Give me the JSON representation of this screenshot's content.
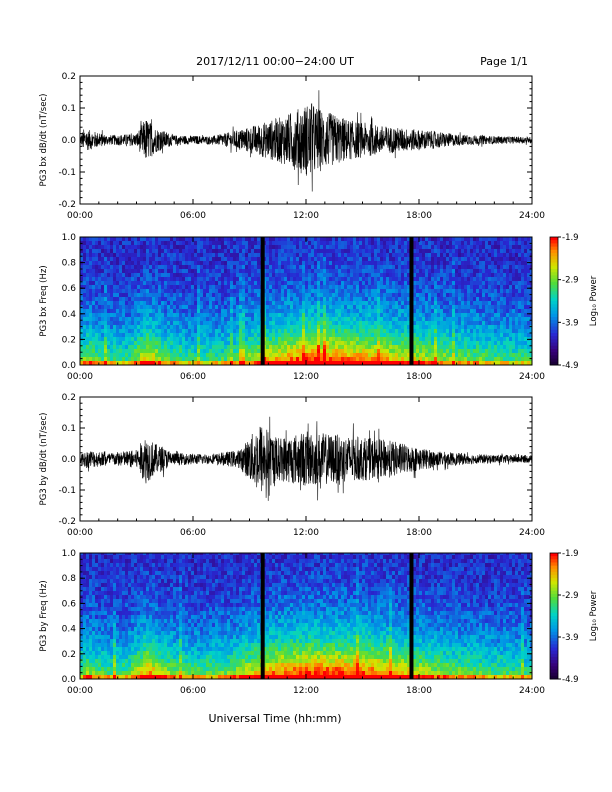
{
  "header": {
    "title": "2017/12/11   00:00−24:00 UT",
    "page": "Page 1/1"
  },
  "footer": {
    "xlabel": "Universal Time (hh:mm)"
  },
  "colorbar": {
    "label": "Log₁₀ Power",
    "ticks": [
      "-1.9",
      "-2.9",
      "-3.9",
      "-4.9"
    ],
    "range": [
      -4.9,
      -1.9
    ]
  },
  "chart_data": [
    {
      "type": "line",
      "ylabel": "PG3 bx dB/dt (nT/sec)",
      "xlim_hours": [
        0,
        24
      ],
      "ylim": [
        -0.2,
        0.2
      ],
      "x_ticks": [
        "00:00",
        "06:00",
        "12:00",
        "18:00",
        "24:00"
      ],
      "y_ticks": [
        "0.2",
        "0.1",
        "0.0",
        "-0.1",
        "-0.2"
      ],
      "envelope": [
        {
          "t": 0,
          "a": 0.012
        },
        {
          "t": 0.2,
          "a": 0.035
        },
        {
          "t": 0.6,
          "a": 0.03
        },
        {
          "t": 1.5,
          "a": 0.015
        },
        {
          "t": 3.0,
          "a": 0.02
        },
        {
          "t": 3.5,
          "a": 0.07
        },
        {
          "t": 4.0,
          "a": 0.04
        },
        {
          "t": 5.0,
          "a": 0.015
        },
        {
          "t": 7.0,
          "a": 0.012
        },
        {
          "t": 8.0,
          "a": 0.025
        },
        {
          "t": 9.5,
          "a": 0.05
        },
        {
          "t": 11.0,
          "a": 0.08
        },
        {
          "t": 12.2,
          "a": 0.12
        },
        {
          "t": 13.0,
          "a": 0.09
        },
        {
          "t": 14.5,
          "a": 0.06
        },
        {
          "t": 16.0,
          "a": 0.045
        },
        {
          "t": 17.5,
          "a": 0.035
        },
        {
          "t": 18.5,
          "a": 0.03
        },
        {
          "t": 20.0,
          "a": 0.018
        },
        {
          "t": 22.0,
          "a": 0.012
        },
        {
          "t": 24,
          "a": 0.01
        }
      ]
    },
    {
      "type": "heatmap",
      "ylabel": "PG3 bx Freq (Hz)",
      "xlim_hours": [
        0,
        24
      ],
      "ylim": [
        0.0,
        1.0
      ],
      "x_ticks": [
        "00:00",
        "06:00",
        "12:00",
        "18:00",
        "24:00"
      ],
      "y_ticks": [
        "1.0",
        "0.8",
        "0.6",
        "0.4",
        "0.2",
        "0.0"
      ],
      "data_gaps_hours": [
        9.7,
        17.6
      ],
      "intensity": [
        {
          "t": 0,
          "v": 0.45
        },
        {
          "t": 0.5,
          "v": 0.55
        },
        {
          "t": 1.0,
          "v": 0.45
        },
        {
          "t": 2.5,
          "v": 0.4
        },
        {
          "t": 3.6,
          "v": 0.7
        },
        {
          "t": 4.5,
          "v": 0.5
        },
        {
          "t": 6.0,
          "v": 0.4
        },
        {
          "t": 8.0,
          "v": 0.45
        },
        {
          "t": 9.5,
          "v": 0.6
        },
        {
          "t": 11.0,
          "v": 0.75
        },
        {
          "t": 12.5,
          "v": 0.85
        },
        {
          "t": 14.0,
          "v": 0.78
        },
        {
          "t": 16.0,
          "v": 0.7
        },
        {
          "t": 18.0,
          "v": 0.6
        },
        {
          "t": 20.0,
          "v": 0.5
        },
        {
          "t": 22.0,
          "v": 0.45
        },
        {
          "t": 24,
          "v": 0.4
        }
      ]
    },
    {
      "type": "line",
      "ylabel": "PG3 by dB/dt (nT/sec)",
      "xlim_hours": [
        0,
        24
      ],
      "ylim": [
        -0.2,
        0.2
      ],
      "x_ticks": [
        "00:00",
        "06:00",
        "12:00",
        "18:00",
        "24:00"
      ],
      "y_ticks": [
        "0.2",
        "0.1",
        "0.0",
        "-0.1",
        "-0.2"
      ],
      "envelope": [
        {
          "t": 0,
          "a": 0.015
        },
        {
          "t": 0.5,
          "a": 0.03
        },
        {
          "t": 1.5,
          "a": 0.02
        },
        {
          "t": 3.0,
          "a": 0.03
        },
        {
          "t": 3.5,
          "a": 0.08
        },
        {
          "t": 4.0,
          "a": 0.05
        },
        {
          "t": 5.0,
          "a": 0.02
        },
        {
          "t": 7.0,
          "a": 0.015
        },
        {
          "t": 8.5,
          "a": 0.03
        },
        {
          "t": 9.6,
          "a": 0.12
        },
        {
          "t": 10.5,
          "a": 0.07
        },
        {
          "t": 12.0,
          "a": 0.09
        },
        {
          "t": 13.5,
          "a": 0.08
        },
        {
          "t": 15.0,
          "a": 0.07
        },
        {
          "t": 16.5,
          "a": 0.06
        },
        {
          "t": 17.8,
          "a": 0.04
        },
        {
          "t": 19.0,
          "a": 0.025
        },
        {
          "t": 21.0,
          "a": 0.015
        },
        {
          "t": 24,
          "a": 0.012
        }
      ]
    },
    {
      "type": "heatmap",
      "ylabel": "PG3 by Freq (Hz)",
      "xlim_hours": [
        0,
        24
      ],
      "ylim": [
        0.0,
        1.0
      ],
      "x_ticks": [
        "00:00",
        "06:00",
        "12:00",
        "18:00",
        "24:00"
      ],
      "y_ticks": [
        "1.0",
        "0.8",
        "0.6",
        "0.4",
        "0.2",
        "0.0"
      ],
      "data_gaps_hours": [
        9.7,
        17.6
      ],
      "intensity": [
        {
          "t": 0,
          "v": 0.45
        },
        {
          "t": 0.5,
          "v": 0.55
        },
        {
          "t": 1.0,
          "v": 0.45
        },
        {
          "t": 2.5,
          "v": 0.45
        },
        {
          "t": 3.6,
          "v": 0.75
        },
        {
          "t": 4.5,
          "v": 0.55
        },
        {
          "t": 6.0,
          "v": 0.45
        },
        {
          "t": 8.0,
          "v": 0.5
        },
        {
          "t": 9.5,
          "v": 0.7
        },
        {
          "t": 11.0,
          "v": 0.8
        },
        {
          "t": 12.5,
          "v": 0.85
        },
        {
          "t": 14.0,
          "v": 0.82
        },
        {
          "t": 15.5,
          "v": 0.8
        },
        {
          "t": 17.0,
          "v": 0.7
        },
        {
          "t": 18.0,
          "v": 0.6
        },
        {
          "t": 20.0,
          "v": 0.5
        },
        {
          "t": 22.0,
          "v": 0.45
        },
        {
          "t": 24,
          "v": 0.4
        }
      ]
    }
  ]
}
